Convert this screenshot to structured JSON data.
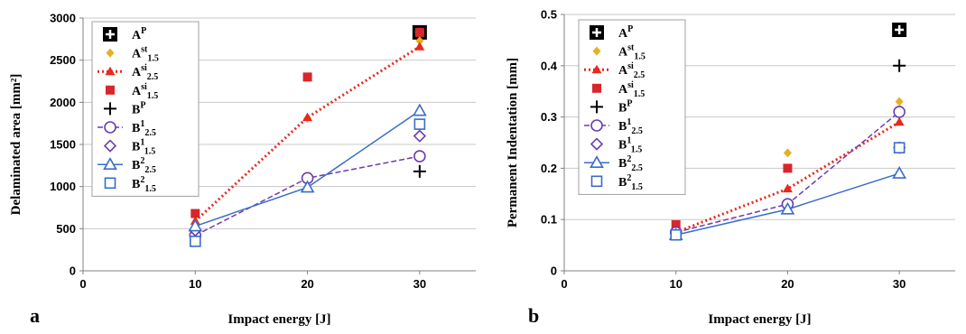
{
  "legend_entries": [
    {
      "key": "AP",
      "base": "A",
      "sup": "P",
      "sub": "",
      "marker": "square-plus",
      "color": "#000000",
      "line": "none"
    },
    {
      "key": "Ast15",
      "base": "A",
      "sup": "st",
      "sub": "1.5",
      "marker": "diamond-filled",
      "color": "#e8b020",
      "line": "none"
    },
    {
      "key": "Asi25",
      "base": "A",
      "sup": "si",
      "sub": "2.5",
      "marker": "triangle-filled",
      "color": "#e8291c",
      "line": "dotted"
    },
    {
      "key": "Asi15",
      "base": "A",
      "sup": "si",
      "sub": "1.5",
      "marker": "square-filled",
      "color": "#d9262b",
      "line": "none"
    },
    {
      "key": "BP",
      "base": "B",
      "sup": "P",
      "sub": "",
      "marker": "plus",
      "color": "#000000",
      "line": "none"
    },
    {
      "key": "B1_25",
      "base": "B",
      "sup": "1",
      "sub": "2.5",
      "marker": "circle-open",
      "color": "#6a3cb0",
      "line": "dashed"
    },
    {
      "key": "B1_15",
      "base": "B",
      "sup": "1",
      "sub": "1.5",
      "marker": "diamond-open",
      "color": "#6a3cb0",
      "line": "none"
    },
    {
      "key": "B2_25",
      "base": "B",
      "sup": "2",
      "sub": "2.5",
      "marker": "triangle-open",
      "color": "#3a6cc8",
      "line": "solid"
    },
    {
      "key": "B2_15",
      "base": "B",
      "sup": "2",
      "sub": "1.5",
      "marker": "square-open",
      "color": "#3a6cc8",
      "line": "none"
    }
  ],
  "chart_data": [
    {
      "type": "scatter",
      "panel_label": "a",
      "xlabel": "Impact energy [J]",
      "ylabel": "Delaminated area [mm²]",
      "xlim": [
        0,
        35
      ],
      "xticks": [
        0,
        10,
        20,
        30
      ],
      "ylim": [
        0,
        3000
      ],
      "yticks": [
        0,
        500,
        1000,
        1500,
        2000,
        2500,
        3000
      ],
      "grid": "horizontal",
      "legend_position": "top-left",
      "series": [
        {
          "key": "AP",
          "x": [
            30
          ],
          "y": [
            2830
          ]
        },
        {
          "key": "Ast15",
          "x": [
            20,
            30
          ],
          "y": [
            1810,
            2730
          ]
        },
        {
          "key": "Asi25",
          "x": [
            10,
            20,
            30
          ],
          "y": [
            590,
            1820,
            2660
          ]
        },
        {
          "key": "Asi15",
          "x": [
            10,
            20,
            30
          ],
          "y": [
            680,
            2300,
            2830
          ]
        },
        {
          "key": "BP",
          "x": [
            30
          ],
          "y": [
            1180
          ]
        },
        {
          "key": "B1_25",
          "x": [
            10,
            20,
            30
          ],
          "y": [
            420,
            1100,
            1360
          ]
        },
        {
          "key": "B1_15",
          "x": [
            10,
            30
          ],
          "y": [
            480,
            1600
          ]
        },
        {
          "key": "B2_25",
          "x": [
            10,
            20,
            30
          ],
          "y": [
            530,
            990,
            1900
          ]
        },
        {
          "key": "B2_15",
          "x": [
            10,
            30
          ],
          "y": [
            350,
            1740
          ]
        }
      ]
    },
    {
      "type": "scatter",
      "panel_label": "b",
      "xlabel": "Impact energy [J]",
      "ylabel": "Permanent Indentation [mm]",
      "xlim": [
        0,
        35
      ],
      "xticks": [
        0,
        10,
        20,
        30
      ],
      "ylim": [
        0,
        0.5
      ],
      "yticks": [
        0,
        0.1,
        0.2,
        0.3,
        0.4,
        0.5
      ],
      "grid": "horizontal",
      "legend_position": "top-left",
      "series": [
        {
          "key": "AP",
          "x": [
            30
          ],
          "y": [
            0.47
          ]
        },
        {
          "key": "Ast15",
          "x": [
            20,
            30
          ],
          "y": [
            0.23,
            0.33
          ]
        },
        {
          "key": "Asi25",
          "x": [
            10,
            20,
            30
          ],
          "y": [
            0.075,
            0.16,
            0.29
          ]
        },
        {
          "key": "Asi15",
          "x": [
            10,
            20
          ],
          "y": [
            0.09,
            0.2
          ]
        },
        {
          "key": "BP",
          "x": [
            30
          ],
          "y": [
            0.4
          ]
        },
        {
          "key": "B1_25",
          "x": [
            10,
            20,
            30
          ],
          "y": [
            0.075,
            0.13,
            0.31
          ]
        },
        {
          "key": "B1_15",
          "x": [
            30
          ],
          "y": [
            0.24
          ]
        },
        {
          "key": "B2_25",
          "x": [
            10,
            20,
            30
          ],
          "y": [
            0.07,
            0.12,
            0.19
          ]
        },
        {
          "key": "B2_15",
          "x": [
            10,
            30
          ],
          "y": [
            0.07,
            0.24
          ]
        }
      ]
    }
  ]
}
